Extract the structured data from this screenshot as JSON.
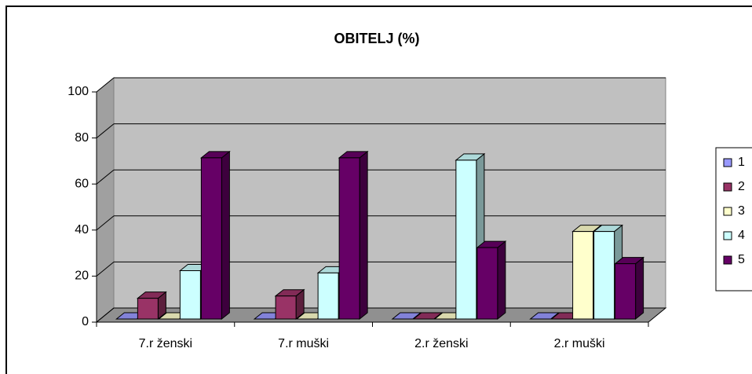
{
  "chart_data": {
    "type": "bar3d",
    "title": "OBITELJ (%)",
    "categories": [
      "7.r ženski",
      "7.r muški",
      "2.r ženski",
      "2.r muški"
    ],
    "series": [
      {
        "name": "1",
        "color": "#9999ff",
        "values": [
          0,
          0,
          0,
          0
        ]
      },
      {
        "name": "2",
        "color": "#993366",
        "values": [
          9,
          10,
          0,
          0
        ]
      },
      {
        "name": "3",
        "color": "#ffffcc",
        "values": [
          0,
          0,
          0,
          38
        ]
      },
      {
        "name": "4",
        "color": "#ccffff",
        "values": [
          21,
          20,
          69,
          38
        ]
      },
      {
        "name": "5",
        "color": "#660066",
        "values": [
          70,
          70,
          31,
          24
        ]
      }
    ],
    "ylim": [
      0,
      100
    ],
    "yticks": [
      0,
      20,
      40,
      60,
      80,
      100
    ],
    "grid": true,
    "legend": "right"
  }
}
